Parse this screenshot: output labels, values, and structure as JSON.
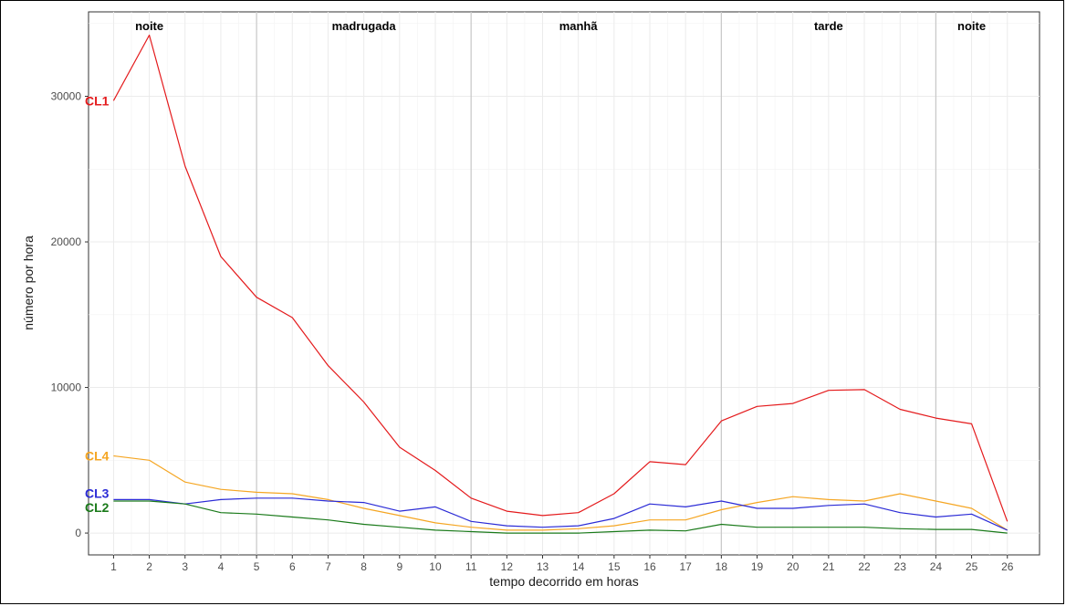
{
  "chart_data": {
    "type": "line",
    "title": "",
    "xlabel": "tempo decorrido em horas",
    "ylabel": "número por hora",
    "x": [
      1,
      2,
      3,
      4,
      5,
      6,
      7,
      8,
      9,
      10,
      11,
      12,
      13,
      14,
      15,
      16,
      17,
      18,
      19,
      20,
      21,
      22,
      23,
      24,
      25,
      26
    ],
    "xlim": [
      0.3,
      26.9
    ],
    "ylim": [
      -1500,
      35800
    ],
    "yticks": [
      0,
      10000,
      20000,
      30000
    ],
    "grid": true,
    "legend": "inline labels at left",
    "periods": [
      {
        "label": "noite",
        "x": 2
      },
      {
        "label": "madrugada",
        "x": 8
      },
      {
        "label": "manhã",
        "x": 14
      },
      {
        "label": "tarde",
        "x": 21
      },
      {
        "label": "noite",
        "x": 25
      }
    ],
    "period_dividers": [
      5,
      11,
      18,
      24
    ],
    "series": [
      {
        "name": "CL1",
        "color": "#e41a1c",
        "values": [
          29700,
          34200,
          25200,
          19000,
          16200,
          14800,
          11500,
          9000,
          5900,
          4300,
          2400,
          1500,
          1200,
          1400,
          2700,
          4900,
          4700,
          7700,
          8700,
          8900,
          9800,
          9850,
          8500,
          7900,
          7500,
          800
        ]
      },
      {
        "name": "CL4",
        "color": "#f5a623",
        "values": [
          5300,
          5000,
          3500,
          3000,
          2800,
          2700,
          2300,
          1700,
          1200,
          700,
          400,
          200,
          200,
          300,
          500,
          900,
          900,
          1600,
          2100,
          2500,
          2300,
          2200,
          2700,
          2200,
          1700,
          200
        ]
      },
      {
        "name": "CL3",
        "color": "#2b2bd6",
        "values": [
          2300,
          2300,
          2000,
          2300,
          2400,
          2400,
          2200,
          2100,
          1500,
          1800,
          800,
          500,
          400,
          500,
          1000,
          2000,
          1800,
          2200,
          1700,
          1700,
          1900,
          2000,
          1400,
          1100,
          1300,
          200
        ]
      },
      {
        "name": "CL2",
        "color": "#1a7a1a",
        "values": [
          2200,
          2200,
          2000,
          1400,
          1300,
          1100,
          900,
          600,
          400,
          200,
          100,
          0,
          0,
          0,
          100,
          200,
          150,
          600,
          400,
          400,
          400,
          400,
          300,
          250,
          250,
          0
        ]
      }
    ]
  }
}
